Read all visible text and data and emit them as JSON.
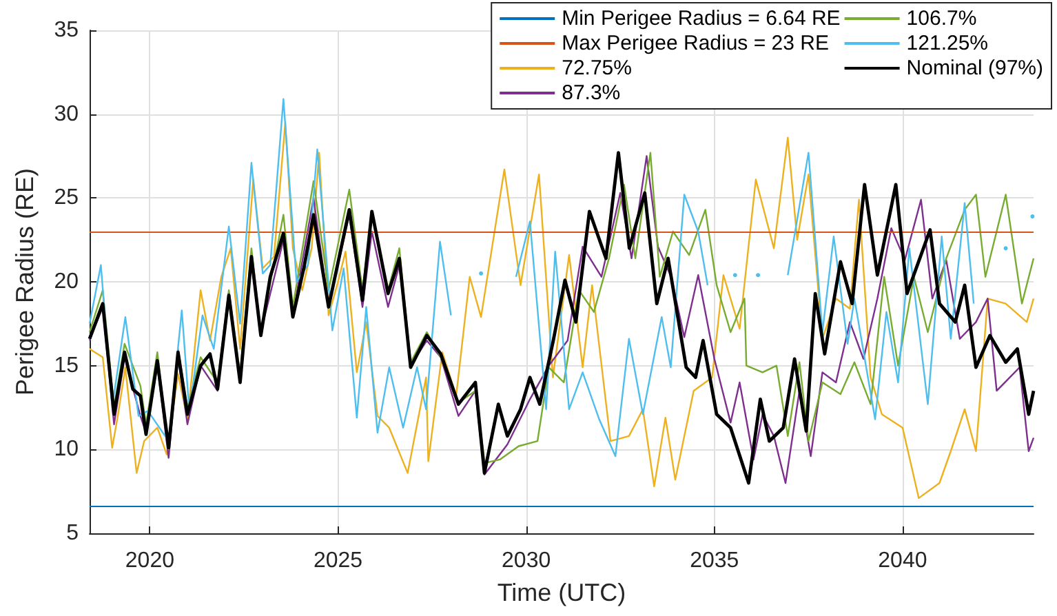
{
  "chart_data": {
    "type": "line",
    "xlabel": "Time (UTC)",
    "ylabel": "Perigee Radius (RE)",
    "xlim": [
      2018.4,
      2043.48
    ],
    "xticks": [
      2020,
      2025,
      2030,
      2035,
      2040
    ],
    "ylim": [
      5,
      35
    ],
    "yticks": [
      5,
      10,
      15,
      20,
      25,
      30,
      35
    ],
    "grid": true,
    "legend": "top right",
    "ref_lines": [
      {
        "axis": "y",
        "value": 6.64,
        "label": "Min Perigee Radius = 6.64 RE",
        "color": "#0072bd"
      },
      {
        "axis": "y",
        "value": 23,
        "label": "Max Perigee Radius = 23 RE",
        "color": "#d95319"
      }
    ],
    "series": [
      {
        "name": "72.75%",
        "color": "#edb120",
        "x": [
          2018.4,
          2018.75,
          2019.0,
          2019.15,
          2019.35,
          2019.65,
          2019.85,
          2020.2,
          2020.45,
          2020.75,
          2021.0,
          2021.35,
          2021.6,
          2021.9,
          2022.15,
          2022.4,
          2022.75,
          2023.0,
          2023.3,
          2023.6,
          2023.8,
          2024.05,
          2024.3,
          2024.5,
          2024.75,
          2025.0,
          2025.2,
          2025.5,
          2025.75,
          2026.05,
          2026.36,
          2026.85,
          2027.34,
          2027.4,
          2027.77,
          2028.14,
          2028.5,
          2028.8,
          2029.42,
          2029.85,
          2030.34,
          2030.71,
          2031.14,
          2031.5,
          2031.75,
          2032.24,
          2032.73,
          2033.1,
          2033.4,
          2033.7,
          2033.96,
          2034.45,
          2034.94,
          2035.24,
          2035.67,
          2036.1,
          2036.58,
          2036.95,
          2037.2,
          2037.5,
          2037.87,
          2038.23,
          2038.6,
          2038.84,
          2039.15,
          2039.45,
          2040.0,
          2040.43,
          2040.98,
          2041.28,
          2041.65,
          2041.95,
          2042.26,
          2042.74,
          2043.3,
          2043.48
        ],
        "values": [
          16.0,
          15.5,
          10.1,
          12.0,
          14.9,
          8.6,
          10.5,
          11.3,
          9.7,
          14.5,
          11.8,
          19.5,
          16.5,
          20.3,
          22.0,
          16.0,
          26.1,
          20.8,
          21.5,
          29.5,
          22.0,
          19.5,
          22.0,
          27.7,
          18.0,
          20.0,
          21.8,
          14.6,
          17.6,
          12.0,
          11.3,
          8.6,
          14.3,
          9.3,
          15.8,
          13.2,
          20.3,
          17.9,
          26.7,
          19.8,
          26.4,
          14.3,
          21.6,
          14.9,
          19.8,
          10.5,
          10.8,
          12.4,
          7.8,
          11.9,
          8.2,
          13.5,
          14.3,
          20.4,
          17.2,
          26.1,
          22.0,
          28.6,
          22.5,
          26.4,
          16.6,
          19.0,
          18.4,
          24.9,
          14.3,
          12.1,
          11.3,
          7.1,
          8.0,
          9.9,
          12.4,
          9.9,
          19.0,
          18.7,
          17.6,
          19.0
        ]
      },
      {
        "name": "87.3%",
        "color": "#7e2f8e",
        "x": [
          2018.4,
          2018.75,
          2019.05,
          2019.33,
          2019.75,
          2019.9,
          2020.2,
          2020.5,
          2020.75,
          2021.0,
          2021.35,
          2021.8,
          2022.1,
          2022.4,
          2022.7,
          2022.95,
          2023.55,
          2023.8,
          2024.35,
          2024.75,
          2025.3,
          2025.65,
          2025.9,
          2026.33,
          2026.63,
          2026.93,
          2027.36,
          2027.73,
          2028.2,
          2028.65,
          2028.89,
          2029.5,
          2030.1,
          2030.6,
          2031.1,
          2031.5,
          2032.0,
          2032.5,
          2032.8,
          2033.2,
          2033.5,
          2033.85,
          2034.2,
          2034.57,
          2035.0,
          2035.43,
          2035.67,
          2036.04,
          2036.28,
          2036.58,
          2036.89,
          2037.26,
          2037.56,
          2037.87,
          2038.23,
          2038.6,
          2038.96,
          2039.33,
          2039.7,
          2040.06,
          2040.49,
          2040.79,
          2041.16,
          2041.52,
          2041.95,
          2042.26,
          2042.5,
          2043.11,
          2043.35,
          2043.48
        ],
        "values": [
          16.5,
          18.5,
          11.5,
          15.5,
          12.0,
          11.0,
          15.0,
          9.5,
          15.5,
          11.5,
          15.0,
          13.5,
          19.0,
          14.0,
          21.5,
          17.0,
          22.5,
          18.0,
          25.0,
          18.5,
          24.0,
          18.5,
          23.0,
          18.5,
          21.0,
          15.0,
          16.5,
          15.5,
          12.0,
          13.5,
          8.5,
          10.3,
          13.0,
          15.0,
          16.5,
          22.1,
          20.3,
          25.3,
          21.4,
          27.5,
          22.1,
          20.3,
          16.7,
          20.4,
          15.4,
          11.6,
          14.0,
          9.4,
          12.1,
          10.8,
          8.0,
          13.5,
          9.6,
          14.6,
          14.0,
          17.6,
          15.4,
          19.0,
          23.2,
          21.3,
          24.9,
          19.0,
          21.3,
          16.6,
          17.6,
          19.0,
          13.5,
          14.9,
          9.9,
          10.7
        ]
      },
      {
        "name": "106.7%",
        "color": "#77ac30",
        "x": [
          2018.4,
          2018.75,
          2019.05,
          2019.33,
          2019.75,
          2019.9,
          2020.2,
          2020.5,
          2020.75,
          2021.0,
          2021.35,
          2021.8,
          2022.1,
          2022.4,
          2022.7,
          2022.95,
          2023.55,
          2023.8,
          2024.35,
          2024.75,
          2025.3,
          2025.65,
          2025.9,
          2026.33,
          2026.63,
          2026.93,
          2027.36,
          2027.73,
          2028.2,
          2028.65,
          2028.9,
          2029.3,
          2029.8,
          2030.3,
          2030.6,
          2031.0,
          2031.4,
          2031.8,
          2032.2,
          2032.6,
          2032.9,
          2033.3,
          2033.55,
          2033.9,
          2034.33,
          2034.76,
          2035.06,
          2035.43,
          2035.8,
          2035.85,
          2036.28,
          2036.65,
          2036.95,
          2037.26,
          2037.5,
          2037.87,
          2038.35,
          2038.72,
          2039.15,
          2039.51,
          2039.88,
          2040.3,
          2040.67,
          2041.16,
          2041.65,
          2041.95,
          2042.2,
          2042.74,
          2043.17,
          2043.48
        ],
        "values": [
          17.0,
          19.5,
          12.5,
          16.3,
          13.8,
          11.5,
          15.8,
          10.0,
          16.0,
          12.5,
          15.5,
          14.0,
          19.5,
          14.5,
          22.0,
          17.0,
          24.0,
          18.5,
          26.0,
          19.5,
          25.5,
          19.5,
          24.0,
          19.5,
          22.0,
          15.2,
          17.0,
          15.5,
          12.8,
          13.5,
          9.2,
          9.4,
          10.2,
          10.5,
          14.9,
          14.0,
          19.5,
          18.2,
          21.4,
          25.8,
          21.4,
          27.7,
          20.3,
          23.0,
          21.6,
          24.3,
          19.8,
          17.0,
          19.0,
          15.0,
          14.6,
          15.0,
          10.8,
          15.2,
          10.5,
          14.0,
          13.3,
          15.2,
          12.7,
          20.3,
          15.0,
          20.3,
          17.0,
          21.4,
          24.3,
          25.2,
          20.3,
          25.2,
          18.7,
          21.4
        ]
      },
      {
        "name": "121.25%",
        "color": "#4dbeee",
        "x": [
          2018.4,
          2018.7,
          2019.0,
          2019.35,
          2019.7,
          2019.95,
          2020.5,
          2020.85,
          2021.05,
          2021.4,
          2021.7,
          2022.1,
          2022.4,
          2022.7,
          2023.0,
          2023.2,
          2023.55,
          2023.9,
          2024.2,
          2024.45,
          2024.85,
          2025.15,
          2025.5,
          2025.75,
          2026.05,
          2026.36,
          2026.73,
          2027.1,
          2027.34,
          2027.71,
          2028.0,
          2028.44,
          2028.8,
          2029.3,
          2029.73,
          2030.1,
          2030.53,
          2030.77,
          2031.14,
          2031.5,
          2031.94,
          2032.37,
          2032.73,
          2033.1,
          2033.6,
          2033.84,
          2034.2,
          2034.57,
          2034.82,
          2034.88,
          2035.06,
          2035.55,
          2035.8,
          2036.16,
          2036.58,
          2036.95,
          2037.5,
          2037.87,
          2038.17,
          2038.54,
          2038.72,
          2039.27,
          2039.57,
          2039.88,
          2040.18,
          2040.67,
          2041.04,
          2041.28,
          2041.65,
          2041.89,
          2042.32,
          2042.74,
          2042.99,
          2043.35,
          2043.45
        ],
        "values": [
          17.5,
          21.0,
          12.5,
          17.9,
          12.0,
          12.3,
          10.5,
          18.3,
          12.3,
          18.0,
          16.0,
          23.3,
          17.5,
          27.1,
          20.5,
          21.0,
          30.9,
          20.0,
          21.0,
          27.9,
          17.1,
          20.8,
          11.9,
          18.5,
          11.0,
          14.9,
          11.3,
          14.9,
          12.4,
          22.4,
          18.0,
          null,
          20.5,
          null,
          20.3,
          23.6,
          12.4,
          21.8,
          12.4,
          14.6,
          11.8,
          9.6,
          16.6,
          12.1,
          17.9,
          14.9,
          25.2,
          23.0,
          19.8,
          null,
          null,
          20.4,
          null,
          20.4,
          null,
          20.4,
          27.7,
          17.0,
          22.7,
          16.3,
          19.0,
          11.8,
          18.2,
          14.0,
          22.0,
          12.7,
          22.7,
          16.6,
          24.7,
          18.7,
          null,
          22.0,
          null,
          null,
          23.9
        ]
      },
      {
        "name": "Nominal (97%)",
        "color": "#000000",
        "x": [
          2018.4,
          2018.75,
          2019.05,
          2019.33,
          2019.55,
          2019.75,
          2019.9,
          2020.2,
          2020.5,
          2020.75,
          2021.0,
          2021.35,
          2021.6,
          2021.8,
          2022.1,
          2022.4,
          2022.7,
          2022.95,
          2023.2,
          2023.55,
          2023.8,
          2024.1,
          2024.35,
          2024.75,
          2025.3,
          2025.65,
          2025.9,
          2026.33,
          2026.63,
          2026.93,
          2027.36,
          2027.73,
          2028.2,
          2028.65,
          2028.89,
          2029.26,
          2029.5,
          2029.85,
          2030.1,
          2030.36,
          2030.72,
          2031.03,
          2031.32,
          2031.68,
          2032.12,
          2032.45,
          2032.74,
          2033.15,
          2033.47,
          2033.77,
          2034.25,
          2034.5,
          2034.7,
          2035.06,
          2035.43,
          2035.91,
          2036.22,
          2036.46,
          2036.83,
          2037.13,
          2037.44,
          2037.68,
          2037.93,
          2038.35,
          2038.66,
          2038.99,
          2039.33,
          2039.82,
          2040.12,
          2040.73,
          2040.98,
          2041.4,
          2041.65,
          2041.95,
          2042.32,
          2042.74,
          2043.05,
          2043.35,
          2043.48
        ],
        "values": [
          16.6,
          18.7,
          12.1,
          15.8,
          13.6,
          13.2,
          10.9,
          15.3,
          10.1,
          15.8,
          12.1,
          15.0,
          15.7,
          13.6,
          19.2,
          14.0,
          21.5,
          16.8,
          20.3,
          22.9,
          17.9,
          20.9,
          24.0,
          18.5,
          24.3,
          18.9,
          24.2,
          19.3,
          21.4,
          14.9,
          16.8,
          15.7,
          12.7,
          14.0,
          8.6,
          12.7,
          10.8,
          12.4,
          14.3,
          12.7,
          16.5,
          20.1,
          17.6,
          24.2,
          21.4,
          27.7,
          22.0,
          25.3,
          18.7,
          21.4,
          14.9,
          14.3,
          16.5,
          12.1,
          11.3,
          8.0,
          13.0,
          10.5,
          11.3,
          15.4,
          11.1,
          19.3,
          15.7,
          21.2,
          18.7,
          25.8,
          20.4,
          25.8,
          19.3,
          23.1,
          18.7,
          17.6,
          19.8,
          14.9,
          16.8,
          15.2,
          16.0,
          12.1,
          13.5
        ]
      }
    ]
  }
}
